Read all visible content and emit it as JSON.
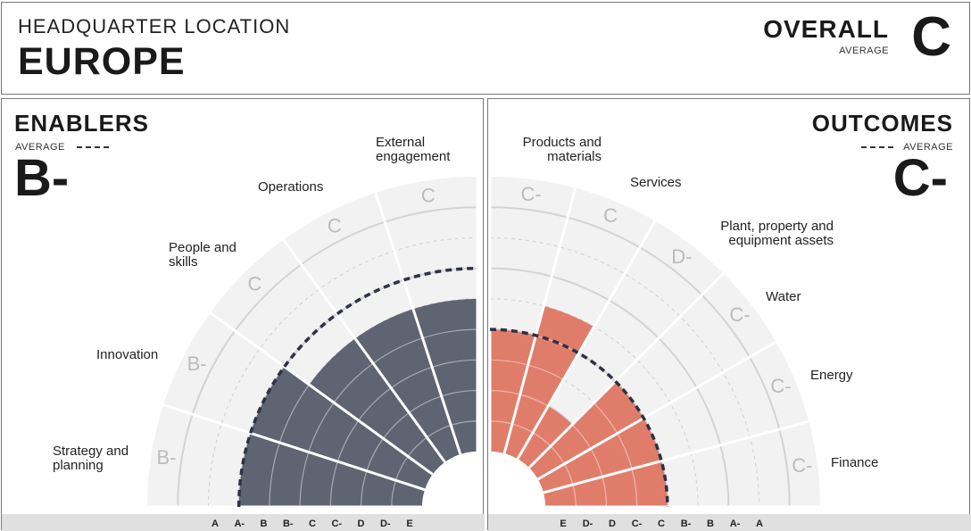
{
  "header": {
    "location_label": "HEADQUARTER LOCATION",
    "location_value": "EUROPE",
    "overall_label": "OVERALL",
    "overall_sub": "AVERAGE",
    "overall_grade": "C"
  },
  "colors": {
    "enablers_fill": "#5f6472",
    "outcomes_fill": "#e07d6a",
    "wedge_bg": "#f2f2f2",
    "ring": "#d3d3d3",
    "average_line": "#2d3245",
    "scale_bar": "#e0e0e0"
  },
  "chart_data": [
    {
      "type": "radial_bar",
      "title": "ENABLERS",
      "average_label": "AVERAGE",
      "average_grade": "B-",
      "scale": [
        "A",
        "A-",
        "B",
        "B-",
        "C",
        "C-",
        "D",
        "D-",
        "E"
      ],
      "categories": [
        {
          "name": "Strategy and planning",
          "grade": "B-",
          "score": 6
        },
        {
          "name": "Innovation",
          "grade": "B-",
          "score": 6
        },
        {
          "name": "People and skills",
          "grade": "C",
          "score": 5
        },
        {
          "name": "Operations",
          "grade": "C",
          "score": 5
        },
        {
          "name": "External engagement",
          "grade": "C",
          "score": 5
        }
      ],
      "average_score": 6
    },
    {
      "type": "radial_bar",
      "title": "OUTCOMES",
      "average_label": "AVERAGE",
      "average_grade": "C-",
      "scale": [
        "E",
        "D-",
        "D",
        "C-",
        "C",
        "B-",
        "B",
        "A-",
        "A"
      ],
      "categories": [
        {
          "name": "Products and materials",
          "grade": "C-",
          "score": 4
        },
        {
          "name": "Services",
          "grade": "C",
          "score": 5
        },
        {
          "name": "Plant, property and equipment assets",
          "grade": "D-",
          "score": 2
        },
        {
          "name": "Water",
          "grade": "C-",
          "score": 4
        },
        {
          "name": "Energy",
          "grade": "C-",
          "score": 4
        },
        {
          "name": "Finance",
          "grade": "C-",
          "score": 4
        }
      ],
      "average_score": 4
    }
  ]
}
